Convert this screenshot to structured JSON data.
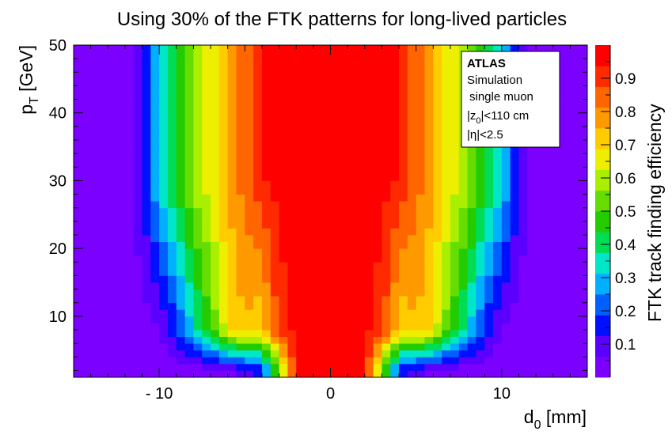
{
  "chart_data": {
    "type": "heatmap",
    "title": "Using 30% of the FTK patterns for long-lived particles",
    "xlabel_main": "d",
    "xlabel_sub": "0",
    "xlabel_unit": " [mm]",
    "ylabel_main": "p",
    "ylabel_sub": "T",
    "ylabel_unit": " [GeV]",
    "zlabel": "FTK track finding efficiency",
    "xlim": [
      -15,
      15
    ],
    "ylim": [
      1,
      50
    ],
    "zlim": [
      0,
      1
    ],
    "grid": false,
    "x_ticks": [
      {
        "value": -10,
        "label": "- 10"
      },
      {
        "value": 0,
        "label": "0"
      },
      {
        "value": 10,
        "label": "10"
      }
    ],
    "y_ticks": [
      {
        "value": 10,
        "label": "10"
      },
      {
        "value": 20,
        "label": "20"
      },
      {
        "value": 30,
        "label": "30"
      },
      {
        "value": 40,
        "label": "40"
      },
      {
        "value": 50,
        "label": "50"
      }
    ],
    "z_ticks": [
      {
        "value": 0.1,
        "label": "0.1"
      },
      {
        "value": 0.2,
        "label": "0.2"
      },
      {
        "value": 0.3,
        "label": "0.3"
      },
      {
        "value": 0.4,
        "label": "0.4"
      },
      {
        "value": 0.5,
        "label": "0.5"
      },
      {
        "value": 0.6,
        "label": "0.6"
      },
      {
        "value": 0.7,
        "label": "0.7"
      },
      {
        "value": 0.8,
        "label": "0.8"
      },
      {
        "value": 0.9,
        "label": "0.9"
      }
    ],
    "efficiency_profile": {
      "description_free": true,
      "d0_abs_mm": [
        0.0,
        1.0,
        2.0,
        3.0,
        4.0,
        4.5,
        5.0,
        5.5,
        6.0,
        6.5,
        7.0,
        7.5,
        8.0,
        8.5,
        9.0,
        9.5,
        10.0,
        10.5,
        11.0,
        11.5,
        12.0,
        13.0,
        15.0
      ],
      "efficiency_at_pt_30": [
        0.97,
        0.97,
        0.97,
        0.96,
        0.93,
        0.88,
        0.84,
        0.8,
        0.76,
        0.71,
        0.66,
        0.62,
        0.58,
        0.52,
        0.47,
        0.4,
        0.32,
        0.23,
        0.13,
        0.07,
        0.04,
        0.02,
        0.02
      ],
      "efficiency_at_pt_8": [
        0.97,
        0.97,
        0.96,
        0.9,
        0.7,
        0.72,
        0.74,
        0.72,
        0.66,
        0.58,
        0.5,
        0.42,
        0.33,
        0.25,
        0.17,
        0.11,
        0.07,
        0.04,
        0.03,
        0.02,
        0.02,
        0.02,
        0.02
      ],
      "efficiency_at_pt_2": [
        0.97,
        0.97,
        0.95,
        0.55,
        0.15,
        0.1,
        0.08,
        0.06,
        0.05,
        0.04,
        0.03,
        0.03,
        0.02,
        0.02,
        0.02,
        0.02,
        0.02,
        0.02,
        0.02,
        0.02,
        0.02,
        0.02,
        0.02
      ]
    },
    "colorscale": [
      "#7b00ff",
      "#5b00ff",
      "#0010ff",
      "#0060ff",
      "#00b0ff",
      "#00e6c8",
      "#00dd55",
      "#22cc00",
      "#66dd00",
      "#aaee00",
      "#eeee00",
      "#ffcc00",
      "#ff9900",
      "#ff6600",
      "#ff2a00",
      "#ff0000"
    ]
  },
  "legend": {
    "experiment": "ATLAS",
    "line1": "Simulation",
    "line2": "single muon",
    "line3_main": "|z",
    "line3_sub": "0",
    "line3_rest": "|<110 cm",
    "line4_main": "|η",
    "line4_rest": "|<2.5"
  }
}
